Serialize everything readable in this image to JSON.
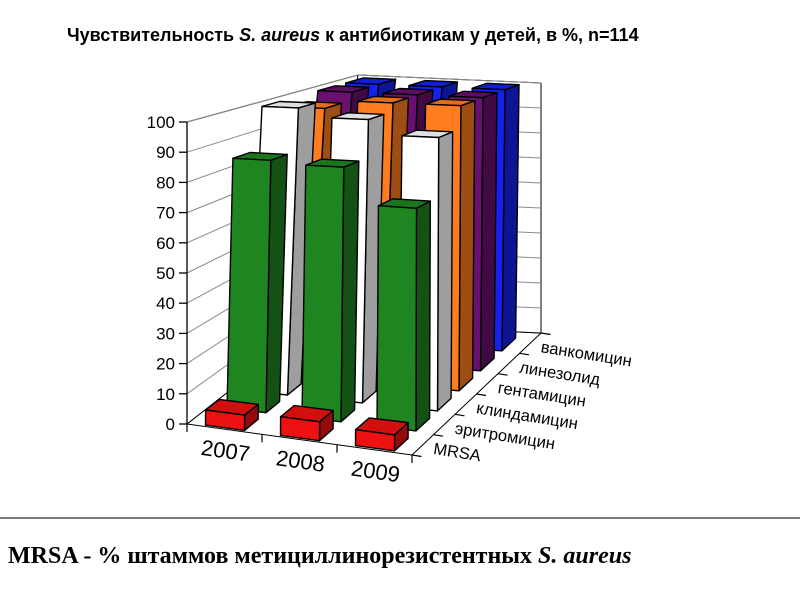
{
  "slide": {
    "title": {
      "part1": "Чувствительность ",
      "italic": "S. aureus",
      "part2": " к антибиотикам у детей, в %, n=114"
    },
    "caption": {
      "part1": "MRSA - % штаммов метициллинорезистентных ",
      "italic": "S. aureus"
    }
  },
  "chart_data": {
    "type": "bar",
    "variant": "3d-column",
    "title": "Чувствительность S. aureus к антибиотикам у детей, в %, n=114",
    "categories": [
      "2007",
      "2008",
      "2009"
    ],
    "series_axis_labels": [
      "MRSA",
      "эритромицин",
      "клиндамицин",
      "гентамицин",
      "линезолид",
      "ванкомицин"
    ],
    "series": [
      {
        "name": "MRSA",
        "color": "#ee1111",
        "values": [
          5,
          6,
          5
        ]
      },
      {
        "name": "эритромицин",
        "color": "#1f8521",
        "values": [
          85,
          84,
          72
        ]
      },
      {
        "name": "клиндамицин",
        "color": "#ffffff",
        "values": [
          100,
          97,
          92
        ]
      },
      {
        "name": "гентамицин",
        "color": "#ff7d1e",
        "values": [
          97,
          100,
          100
        ]
      },
      {
        "name": "линезолид",
        "color": "#6a1070",
        "values": [
          100,
          100,
          100
        ]
      },
      {
        "name": "ванкомицин",
        "color": "#1522ee",
        "values": [
          100,
          100,
          100
        ]
      }
    ],
    "xlabel": "",
    "ylabel": "",
    "ylim": [
      0,
      100
    ],
    "ytick_step": 10,
    "grid": true,
    "legend_position": "series-depth-axis",
    "wall_color": "#ffffff",
    "gridline_color": "#8a8a8a"
  }
}
